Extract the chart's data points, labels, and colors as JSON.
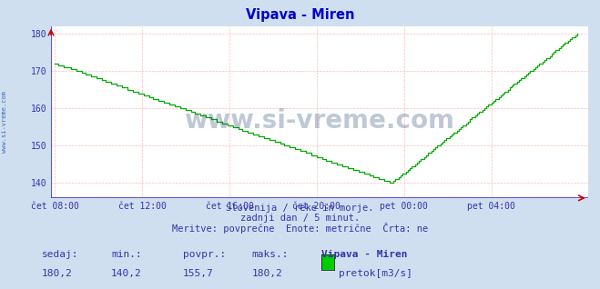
{
  "title": "Vipava - Miren",
  "title_color": "#0000cc",
  "bg_color": "#d0dff0",
  "plot_bg_color": "#ffffff",
  "line_color": "#00aa00",
  "grid_color": "#ffaaaa",
  "grid_color_minor": "#ffe0e0",
  "axis_color": "#3333cc",
  "tick_color": "#3333aa",
  "xlabel_color": "#3333aa",
  "xlim_start": 0,
  "xlim_end": 287,
  "ylim_min": 136,
  "ylim_max": 182,
  "yticks": [
    140,
    150,
    160,
    170,
    180
  ],
  "xtick_labels": [
    "čet 08:00",
    "čet 12:00",
    "čet 16:00",
    "čet 20:00",
    "pet 00:00",
    "pet 04:00"
  ],
  "xtick_positions": [
    0,
    48,
    96,
    144,
    192,
    240
  ],
  "subtitle1": "Slovenija / reke in morje.",
  "subtitle2": "zadnji dan / 5 minut.",
  "subtitle3": "Meritve: povprečne  Enote: metrične  Črta: ne",
  "footer_labels": [
    "sedaj:",
    "min.:",
    "povpr.:",
    "maks.:",
    "Vipava - Miren"
  ],
  "footer_values": [
    "180,2",
    "140,2",
    "155,7",
    "180,2"
  ],
  "legend_label": "pretok[m3/s]",
  "legend_color": "#00cc00",
  "watermark": "www.si-vreme.com",
  "watermark_color": "#1a3a6a",
  "sidebar_text": "www.si-vreme.com",
  "sidebar_color": "#2255aa"
}
